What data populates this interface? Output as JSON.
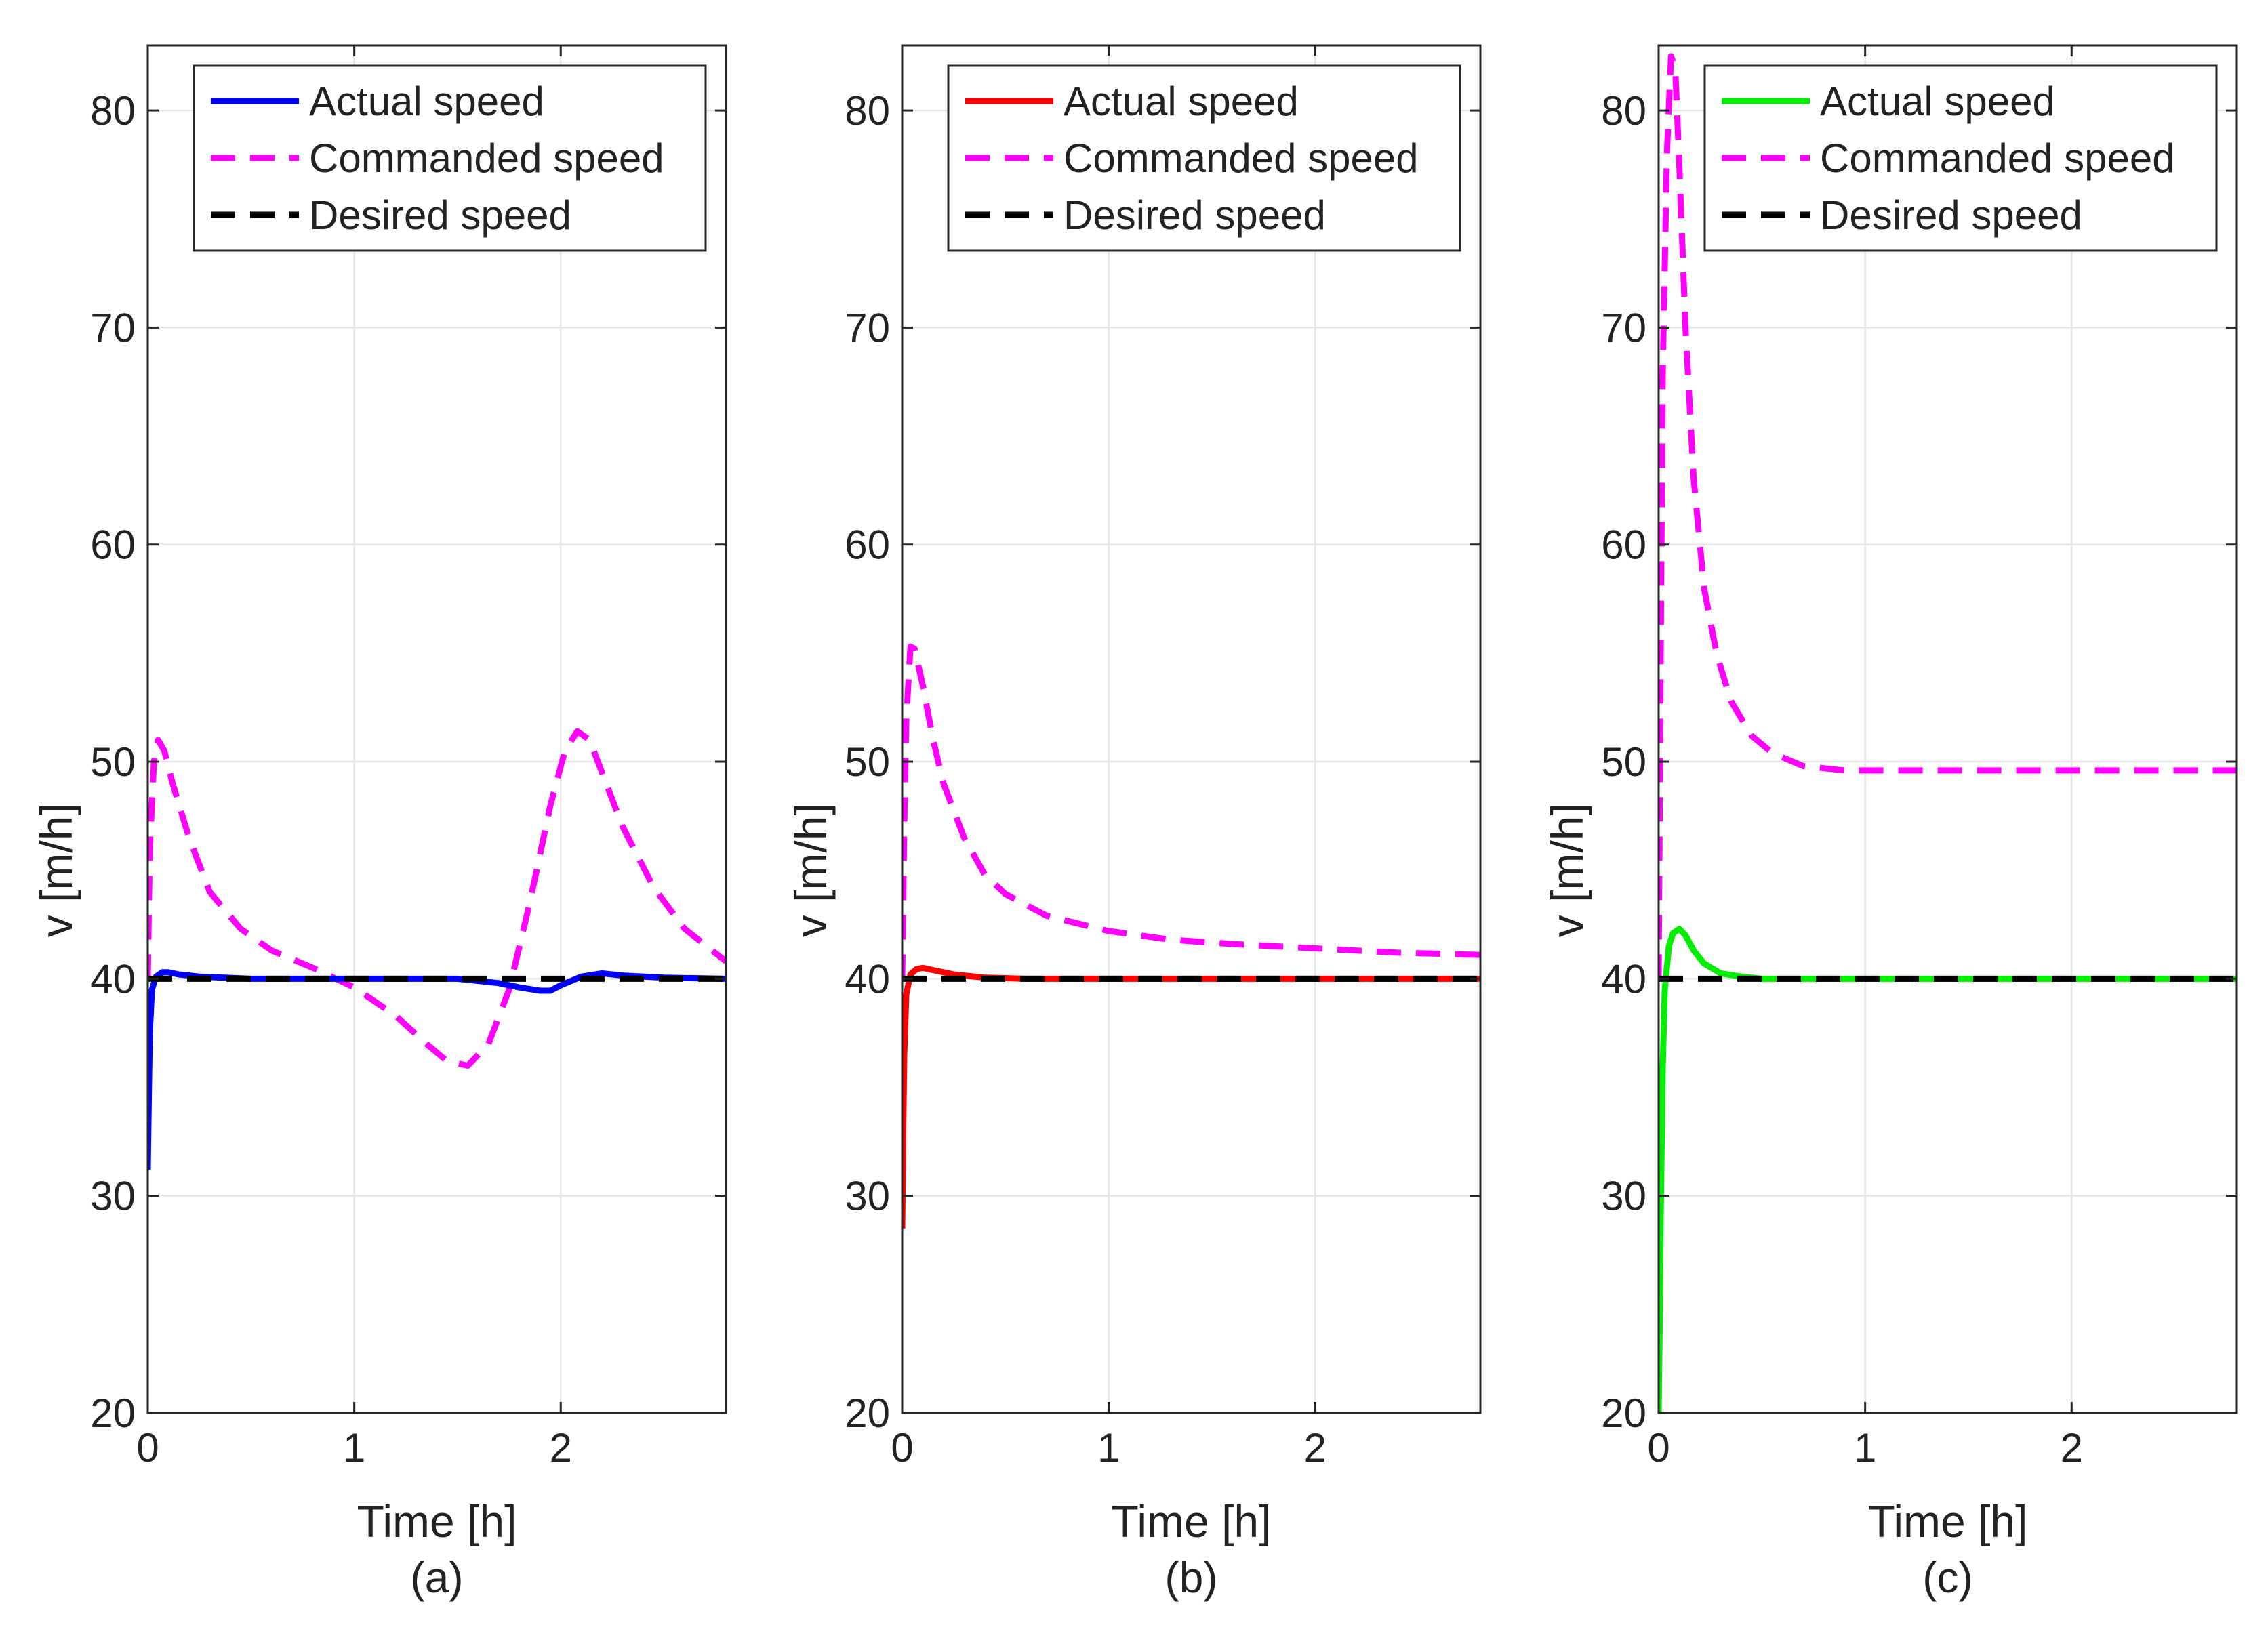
{
  "figure": {
    "y_label": "v [m/h]",
    "x_label": "Time [h]"
  },
  "colors": {
    "commanded": "#ff00ff",
    "desired": "#000000",
    "grid": "#e6e6e6",
    "axis": "#262626"
  },
  "chart_data": [
    {
      "type": "line",
      "caption": "(a)",
      "xlabel": "Time [h]",
      "ylabel": "v [m/h]",
      "xlim": [
        0,
        2.8
      ],
      "ylim": [
        20,
        83
      ],
      "xticks": [
        0,
        1,
        2
      ],
      "yticks": [
        20,
        30,
        40,
        50,
        60,
        70,
        80
      ],
      "grid": true,
      "legend_position": "top-right",
      "series": [
        {
          "name": "Actual speed",
          "style": "solid",
          "color": "#0000ff",
          "x": [
            0,
            0.005,
            0.01,
            0.02,
            0.04,
            0.07,
            0.1,
            0.15,
            0.25,
            0.5,
            0.8,
            1.0,
            1.3,
            1.5,
            1.7,
            1.8,
            1.9,
            1.95,
            2.0,
            2.1,
            2.2,
            2.3,
            2.5,
            2.8
          ],
          "y": [
            31.2,
            34.5,
            37.5,
            39.5,
            40.1,
            40.3,
            40.3,
            40.2,
            40.1,
            40.0,
            40.0,
            40.0,
            40.0,
            40.0,
            39.8,
            39.6,
            39.45,
            39.45,
            39.7,
            40.1,
            40.25,
            40.15,
            40.05,
            40.0
          ]
        },
        {
          "name": "Commanded speed",
          "style": "dashed",
          "color": "#ff00ff",
          "x": [
            0,
            0.01,
            0.03,
            0.05,
            0.08,
            0.12,
            0.2,
            0.3,
            0.45,
            0.6,
            0.8,
            1.0,
            1.2,
            1.35,
            1.45,
            1.55,
            1.65,
            1.75,
            1.85,
            1.95,
            2.02,
            2.08,
            2.14,
            2.2,
            2.3,
            2.45,
            2.6,
            2.8
          ],
          "y": [
            40.0,
            46.0,
            50.0,
            51.0,
            50.5,
            49.0,
            46.5,
            44.0,
            42.3,
            41.3,
            40.5,
            39.6,
            38.3,
            37.0,
            36.2,
            36.0,
            37.0,
            39.5,
            43.5,
            48.0,
            50.5,
            51.4,
            51.0,
            49.5,
            47.0,
            44.2,
            42.3,
            40.8
          ]
        },
        {
          "name": "Desired speed",
          "style": "dashed",
          "color": "#000000",
          "x": [
            0,
            2.8
          ],
          "y": [
            40,
            40
          ]
        }
      ]
    },
    {
      "type": "line",
      "caption": "(b)",
      "xlabel": "Time [h]",
      "ylabel": "v [m/h]",
      "xlim": [
        0,
        2.8
      ],
      "ylim": [
        20,
        83
      ],
      "xticks": [
        0,
        1,
        2
      ],
      "yticks": [
        20,
        30,
        40,
        50,
        60,
        70,
        80
      ],
      "grid": true,
      "legend_position": "top-right",
      "series": [
        {
          "name": "Actual speed",
          "style": "solid",
          "color": "#ff0000",
          "x": [
            0,
            0.005,
            0.01,
            0.02,
            0.04,
            0.07,
            0.1,
            0.15,
            0.25,
            0.4,
            0.6,
            1.0,
            2.0,
            2.8
          ],
          "y": [
            28.5,
            33.0,
            36.5,
            39.3,
            40.2,
            40.45,
            40.5,
            40.4,
            40.2,
            40.05,
            40.0,
            40.0,
            40.0,
            40.0
          ]
        },
        {
          "name": "Commanded speed",
          "style": "dashed",
          "color": "#ff00ff",
          "x": [
            0,
            0.01,
            0.02,
            0.04,
            0.06,
            0.1,
            0.15,
            0.2,
            0.3,
            0.4,
            0.5,
            0.7,
            1.0,
            1.3,
            1.6,
            2.0,
            2.4,
            2.8
          ],
          "y": [
            40.0,
            47.0,
            52.0,
            55.3,
            55.2,
            53.5,
            51.0,
            49.0,
            46.5,
            44.8,
            43.9,
            42.9,
            42.2,
            41.8,
            41.6,
            41.4,
            41.2,
            41.1
          ]
        },
        {
          "name": "Desired speed",
          "style": "dashed",
          "color": "#000000",
          "x": [
            0,
            2.8
          ],
          "y": [
            40,
            40
          ]
        }
      ]
    },
    {
      "type": "line",
      "caption": "(c)",
      "xlabel": "Time [h]",
      "ylabel": "v [m/h]",
      "xlim": [
        0,
        2.8
      ],
      "ylim": [
        20,
        83
      ],
      "xticks": [
        0,
        1,
        2
      ],
      "yticks": [
        20,
        30,
        40,
        50,
        60,
        70,
        80
      ],
      "grid": true,
      "legend_position": "top-right",
      "series": [
        {
          "name": "Actual speed",
          "style": "solid",
          "color": "#00ee00",
          "x": [
            0,
            0.005,
            0.01,
            0.02,
            0.03,
            0.05,
            0.07,
            0.1,
            0.13,
            0.17,
            0.22,
            0.3,
            0.4,
            0.5,
            0.8,
            2.8
          ],
          "y": [
            20.0,
            24.0,
            29.0,
            36.0,
            39.5,
            41.5,
            42.1,
            42.3,
            42.0,
            41.3,
            40.7,
            40.25,
            40.1,
            40.0,
            40.0,
            40.0
          ]
        },
        {
          "name": "Commanded speed",
          "style": "dashed",
          "color": "#ff00ff",
          "x": [
            0,
            0.01,
            0.02,
            0.04,
            0.06,
            0.08,
            0.1,
            0.13,
            0.17,
            0.22,
            0.28,
            0.35,
            0.45,
            0.55,
            0.7,
            0.9,
            1.2,
            2.0,
            2.8
          ],
          "y": [
            40.0,
            55.0,
            68.0,
            78.0,
            82.5,
            82.0,
            77.5,
            70.0,
            63.0,
            58.0,
            55.0,
            52.8,
            51.2,
            50.4,
            49.8,
            49.6,
            49.6,
            49.6,
            49.6
          ]
        },
        {
          "name": "Desired speed",
          "style": "dashed",
          "color": "#000000",
          "x": [
            0,
            2.8
          ],
          "y": [
            40,
            40
          ]
        }
      ]
    }
  ]
}
